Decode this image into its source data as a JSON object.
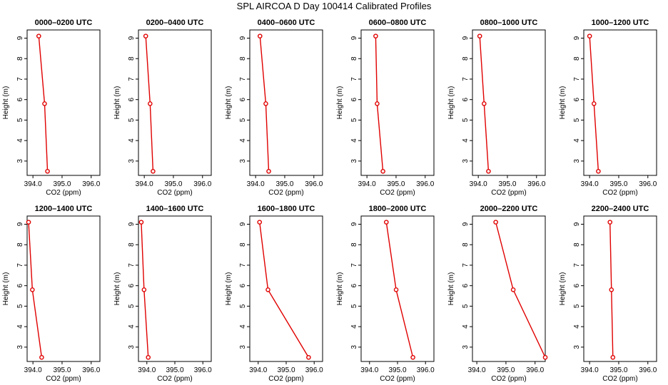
{
  "figure": {
    "title": "SPL AIRCOA D  Day 100414  Calibrated Profiles"
  },
  "colors": {
    "series": "#e00000",
    "axes": "#000000",
    "background": "#ffffff"
  },
  "chart_data": [
    {
      "type": "line",
      "title": "0000–0200 UTC",
      "xlabel": "CO2 (ppm)",
      "ylabel": "Height (m)",
      "x": [
        394.2,
        394.4,
        394.5
      ],
      "y": [
        9.1,
        5.8,
        2.5
      ],
      "xlim": [
        393.8,
        396.3
      ],
      "ylim": [
        2.3,
        9.4
      ],
      "xticks": [
        "394.0",
        "395.0",
        "396.0"
      ],
      "yticks": [
        "3",
        "4",
        "5",
        "6",
        "7",
        "8",
        "9"
      ]
    },
    {
      "type": "line",
      "title": "0200–0400 UTC",
      "xlabel": "CO2 (ppm)",
      "ylabel": "Height (m)",
      "x": [
        394.05,
        394.2,
        394.3
      ],
      "y": [
        9.1,
        5.8,
        2.5
      ],
      "xlim": [
        393.8,
        396.3
      ],
      "ylim": [
        2.3,
        9.4
      ],
      "xticks": [
        "394.0",
        "395.0",
        "396.0"
      ],
      "yticks": [
        "3",
        "4",
        "5",
        "6",
        "7",
        "8",
        "9"
      ]
    },
    {
      "type": "line",
      "title": "0400–0600 UTC",
      "xlabel": "CO2 (ppm)",
      "ylabel": "Height (m)",
      "x": [
        394.15,
        394.35,
        394.45
      ],
      "y": [
        9.1,
        5.8,
        2.5
      ],
      "xlim": [
        393.8,
        396.3
      ],
      "ylim": [
        2.3,
        9.4
      ],
      "xticks": [
        "394.0",
        "395.0",
        "396.0"
      ],
      "yticks": [
        "3",
        "4",
        "5",
        "6",
        "7",
        "8",
        "9"
      ]
    },
    {
      "type": "line",
      "title": "0600–0800 UTC",
      "xlabel": "CO2 (ppm)",
      "ylabel": "Height (m)",
      "x": [
        394.3,
        394.35,
        394.55
      ],
      "y": [
        9.1,
        5.8,
        2.5
      ],
      "xlim": [
        393.8,
        396.3
      ],
      "ylim": [
        2.3,
        9.4
      ],
      "xticks": [
        "394.0",
        "395.0",
        "396.0"
      ],
      "yticks": [
        "3",
        "4",
        "5",
        "6",
        "7",
        "8",
        "9"
      ]
    },
    {
      "type": "line",
      "title": "0800–1000 UTC",
      "xlabel": "CO2 (ppm)",
      "ylabel": "Height (m)",
      "x": [
        394.05,
        394.2,
        394.35
      ],
      "y": [
        9.1,
        5.8,
        2.5
      ],
      "xlim": [
        393.8,
        396.3
      ],
      "ylim": [
        2.3,
        9.4
      ],
      "xticks": [
        "394.0",
        "395.0",
        "396.0"
      ],
      "yticks": [
        "3",
        "4",
        "5",
        "6",
        "7",
        "8",
        "9"
      ]
    },
    {
      "type": "line",
      "title": "1000–1200 UTC",
      "xlabel": "CO2 (ppm)",
      "ylabel": "Height (m)",
      "x": [
        394.0,
        394.15,
        394.3
      ],
      "y": [
        9.1,
        5.8,
        2.5
      ],
      "xlim": [
        393.8,
        396.3
      ],
      "ylim": [
        2.3,
        9.4
      ],
      "xticks": [
        "394.0",
        "395.0",
        "396.0"
      ],
      "yticks": [
        "3",
        "4",
        "5",
        "6",
        "7",
        "8",
        "9"
      ]
    },
    {
      "type": "line",
      "title": "1200–1400 UTC",
      "xlabel": "CO2 (ppm)",
      "ylabel": "Height (m)",
      "x": [
        393.85,
        393.98,
        394.3
      ],
      "y": [
        9.1,
        5.8,
        2.5
      ],
      "xlim": [
        393.8,
        396.3
      ],
      "ylim": [
        2.3,
        9.4
      ],
      "xticks": [
        "394.0",
        "395.0",
        "396.0"
      ],
      "yticks": [
        "3",
        "4",
        "5",
        "6",
        "7",
        "8",
        "9"
      ]
    },
    {
      "type": "line",
      "title": "1400–1600 UTC",
      "xlabel": "CO2 (ppm)",
      "ylabel": "Height (m)",
      "x": [
        393.8,
        393.9,
        394.05
      ],
      "y": [
        9.1,
        5.8,
        2.5
      ],
      "xlim": [
        393.7,
        396.3
      ],
      "ylim": [
        2.3,
        9.4
      ],
      "xticks": [
        "394.0",
        "395.0",
        "396.0"
      ],
      "yticks": [
        "3",
        "4",
        "5",
        "6",
        "7",
        "8",
        "9"
      ]
    },
    {
      "type": "line",
      "title": "1600–1800 UTC",
      "xlabel": "CO2 (ppm)",
      "ylabel": "Height (m)",
      "x": [
        394.05,
        394.35,
        395.8
      ],
      "y": [
        9.1,
        5.8,
        2.5
      ],
      "xlim": [
        393.7,
        396.3
      ],
      "ylim": [
        2.3,
        9.4
      ],
      "xticks": [
        "394.0",
        "395.0",
        "396.0"
      ],
      "yticks": [
        "3",
        "4",
        "5",
        "6",
        "7",
        "8",
        "9"
      ]
    },
    {
      "type": "line",
      "title": "1800–2000 UTC",
      "xlabel": "CO2 (ppm)",
      "ylabel": "Height (m)",
      "x": [
        394.6,
        394.95,
        395.55
      ],
      "y": [
        9.1,
        5.8,
        2.5
      ],
      "xlim": [
        393.7,
        396.3
      ],
      "ylim": [
        2.3,
        9.4
      ],
      "xticks": [
        "394.0",
        "395.0",
        "396.0"
      ],
      "yticks": [
        "3",
        "4",
        "5",
        "6",
        "7",
        "8",
        "9"
      ]
    },
    {
      "type": "line",
      "title": "2000–2200 UTC",
      "xlabel": "CO2 (ppm)",
      "ylabel": "Height (m)",
      "x": [
        394.65,
        395.25,
        396.35
      ],
      "y": [
        9.1,
        5.8,
        2.5
      ],
      "xlim": [
        393.85,
        396.35
      ],
      "ylim": [
        2.3,
        9.4
      ],
      "xticks": [
        "394.0",
        "395.0",
        "396.0"
      ],
      "yticks": [
        "3",
        "4",
        "5",
        "6",
        "7",
        "8",
        "9"
      ]
    },
    {
      "type": "line",
      "title": "2200–2400 UTC",
      "xlabel": "CO2 (ppm)",
      "ylabel": "Height (m)",
      "x": [
        394.7,
        394.75,
        394.8
      ],
      "y": [
        9.1,
        5.8,
        2.5
      ],
      "xlim": [
        393.8,
        396.3
      ],
      "ylim": [
        2.3,
        9.4
      ],
      "xticks": [
        "394.0",
        "395.0",
        "396.0"
      ],
      "yticks": [
        "3",
        "4",
        "5",
        "6",
        "7",
        "8",
        "9"
      ]
    }
  ]
}
